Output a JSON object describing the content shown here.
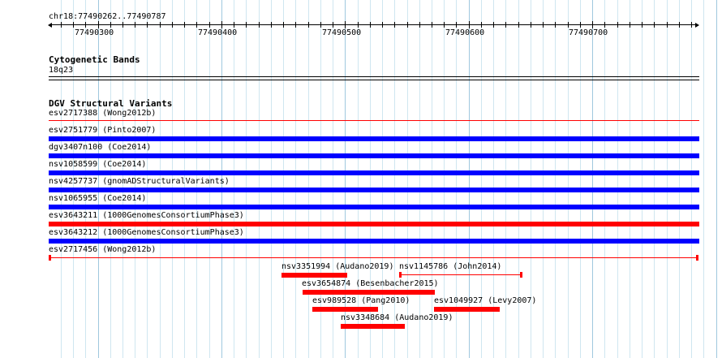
{
  "ruler": {
    "locus": "chr18:77490262..77490787",
    "ticks": [
      "77490300",
      "77490400",
      "77490500",
      "77490600",
      "77490700"
    ]
  },
  "cytobands": {
    "title": "Cytogenetic Bands",
    "band": "18q23"
  },
  "dgv": {
    "title": "DGV Structural Variants",
    "colors": {
      "loss": "#ff0000",
      "gain": "#0000ff"
    },
    "rows": [
      {
        "label": "esv2717388 (Wong2012b)",
        "color": "red",
        "style": "thin-line"
      },
      {
        "label": "esv2751779 (Pinto2007)",
        "color": "blue",
        "style": "bar"
      },
      {
        "label": "dgv3407n100 (Coe2014)",
        "color": "blue",
        "style": "bar"
      },
      {
        "label": "nsv1058599 (Coe2014)",
        "color": "blue",
        "style": "bar"
      },
      {
        "label": "nsv4257737 (gnomADStructuralVariants)",
        "color": "blue",
        "style": "bar"
      },
      {
        "label": "nsv1065955 (Coe2014)",
        "color": "blue",
        "style": "bar"
      },
      {
        "label": "esv3643211 (1000GenomesConsortiumPhase3)",
        "color": "red",
        "style": "bar"
      },
      {
        "label": "esv3643212 (1000GenomesConsortiumPhase3)",
        "color": "blue",
        "style": "bar"
      },
      {
        "label": "esv2717456 (Wong2012b)",
        "color": "red",
        "style": "capped-line"
      }
    ],
    "small_features": [
      {
        "label": "nsv3351994 (Audano2019)",
        "color": "red",
        "style": "bar"
      },
      {
        "label": "nsv1145786 (John2014)",
        "color": "red",
        "style": "capped-line"
      },
      {
        "label": "esv3654874 (Besenbacher2015)",
        "color": "red",
        "style": "bar"
      },
      {
        "label": "esv989528 (Pang2010)",
        "color": "red",
        "style": "bar"
      },
      {
        "label": "esv1049927 (Levy2007)",
        "color": "red",
        "style": "bar"
      },
      {
        "label": "nsv3348684 (Audano2019)",
        "color": "red",
        "style": "bar"
      }
    ]
  }
}
